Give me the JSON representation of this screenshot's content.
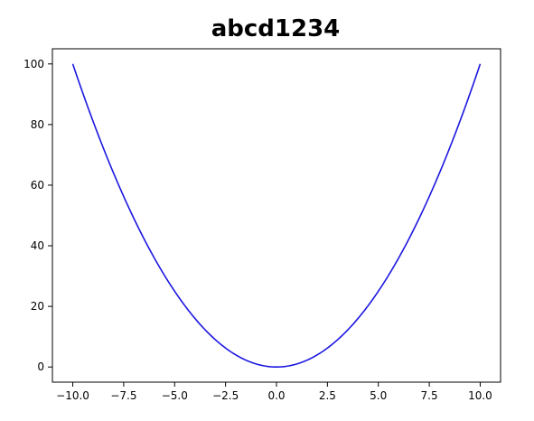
{
  "chart_data": {
    "type": "line",
    "title": "abcd1234",
    "xlabel": "",
    "ylabel": "",
    "xlim": [
      -11.0,
      11.0
    ],
    "ylim": [
      -5.0,
      105.0
    ],
    "grid": false,
    "x_ticks": [
      -10.0,
      -7.5,
      -5.0,
      -2.5,
      0.0,
      2.5,
      5.0,
      7.5,
      10.0
    ],
    "x_tick_labels": [
      "−10.0",
      "−7.5",
      "−5.0",
      "−2.5",
      "0.0",
      "2.5",
      "5.0",
      "7.5",
      "10.0"
    ],
    "y_ticks": [
      0,
      20,
      40,
      60,
      80,
      100
    ],
    "y_tick_labels": [
      "0",
      "20",
      "40",
      "60",
      "80",
      "100"
    ],
    "series": [
      {
        "color": "#1c17e0",
        "x": [
          -10,
          -9,
          -8,
          -7,
          -6,
          -5,
          -4,
          -3,
          -2,
          -1,
          0,
          1,
          2,
          3,
          4,
          5,
          6,
          7,
          8,
          9,
          10
        ],
        "y": [
          100,
          81,
          64,
          49,
          36,
          25,
          16,
          9,
          4,
          1,
          0,
          1,
          4,
          9,
          16,
          25,
          36,
          49,
          64,
          81,
          100
        ]
      }
    ]
  }
}
